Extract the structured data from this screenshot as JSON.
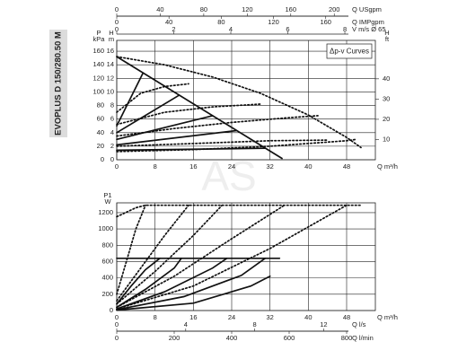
{
  "model": "EVOPLUS D 150/280.50 M",
  "watermark": "AS",
  "chart_data": [
    {
      "type": "line",
      "legend_box": "Δp-v Curves",
      "grid": true,
      "x_label": "Q m³/h",
      "xlim": [
        0,
        54
      ],
      "xticks": [
        0,
        8,
        16,
        24,
        32,
        40,
        48
      ],
      "y_label": "P",
      "y_unit": "kPa",
      "ylim": [
        0,
        176
      ],
      "yticks": [
        0,
        20,
        40,
        60,
        80,
        100,
        120,
        140,
        160
      ],
      "x_axes_extra": [
        {
          "label": "Q USgpm",
          "lim": [
            0,
            237.8
          ],
          "ticks": [
            0,
            40,
            80,
            120,
            160,
            200
          ]
        },
        {
          "label": "Q IMPgpm",
          "lim": [
            0,
            198
          ],
          "ticks": [
            0,
            40,
            80,
            120,
            160
          ]
        },
        {
          "label": "V m/s Ø 65",
          "lim": [
            0,
            9.07
          ],
          "ticks": [
            0,
            2,
            4,
            6,
            8
          ]
        }
      ],
      "y_axes_extra": [
        {
          "label": "H",
          "unit": "m",
          "side": "left",
          "lim": [
            0,
            17.6
          ],
          "ticks": [
            0,
            2,
            4,
            6,
            8,
            10,
            12,
            14,
            16
          ]
        },
        {
          "label": "H",
          "unit": "ft",
          "side": "right",
          "lim": [
            0,
            59
          ],
          "ticks": [
            10,
            20,
            30,
            40
          ]
        }
      ],
      "series": [
        {
          "style": "solid",
          "color": "#111111",
          "x": [
            0,
            34.5
          ],
          "values": [
            152,
            2
          ]
        },
        {
          "style": "solid",
          "color": "#111111",
          "x": [
            0,
            5.5
          ],
          "values": [
            50,
            128
          ]
        },
        {
          "style": "solid",
          "color": "#111111",
          "x": [
            0,
            13
          ],
          "values": [
            40,
            95
          ]
        },
        {
          "style": "solid",
          "color": "#111111",
          "x": [
            0,
            20
          ],
          "values": [
            30,
            65
          ]
        },
        {
          "style": "solid",
          "color": "#111111",
          "x": [
            0,
            25
          ],
          "values": [
            22,
            43
          ]
        },
        {
          "style": "solid",
          "color": "#111111",
          "x": [
            0,
            31
          ],
          "values": [
            14,
            17
          ]
        },
        {
          "style": "dotted",
          "color": "#111111",
          "x": [
            0,
            10,
            20,
            30,
            40,
            48,
            51
          ],
          "values": [
            152,
            140,
            122,
            98,
            66,
            33,
            18
          ]
        },
        {
          "style": "dotted",
          "color": "#111111",
          "x": [
            0,
            5,
            10,
            15
          ],
          "values": [
            70,
            98,
            108,
            112
          ]
        },
        {
          "style": "dotted",
          "color": "#111111",
          "x": [
            0,
            10,
            20,
            30
          ],
          "values": [
            52,
            70,
            78,
            82
          ]
        },
        {
          "style": "dotted",
          "color": "#111111",
          "x": [
            0,
            12,
            24,
            36,
            42
          ],
          "values": [
            35,
            46,
            55,
            62,
            65
          ]
        },
        {
          "style": "dotted",
          "color": "#111111",
          "x": [
            0,
            16,
            32,
            44
          ],
          "values": [
            20,
            24,
            28,
            29
          ]
        },
        {
          "style": "dotted",
          "color": "#111111",
          "x": [
            0,
            16,
            32,
            48,
            50
          ],
          "values": [
            12,
            15,
            20,
            28,
            30
          ]
        }
      ]
    },
    {
      "type": "line",
      "grid": true,
      "x_label": "Q m³/h",
      "xlim": [
        0,
        54
      ],
      "xticks": [
        0,
        8,
        16,
        24,
        32,
        40,
        48
      ],
      "y_label": "P1",
      "y_unit": "W",
      "ylim": [
        0,
        1320
      ],
      "yticks": [
        0,
        200,
        400,
        600,
        800,
        1000,
        1200
      ],
      "x_axes_extra": [
        {
          "label": "Q l/s",
          "lim": [
            0,
            15
          ],
          "ticks": [
            0,
            4,
            8,
            12
          ]
        },
        {
          "label": "Q l/min",
          "lim": [
            0,
            900
          ],
          "ticks": [
            0,
            200,
            400,
            600,
            800
          ]
        }
      ],
      "series": [
        {
          "style": "solid",
          "color": "#111111",
          "x": [
            0,
            34
          ],
          "values": [
            640,
            640
          ]
        },
        {
          "style": "solid",
          "color": "#111111",
          "x": [
            0,
            3,
            6,
            9
          ],
          "values": [
            80,
            300,
            500,
            640
          ]
        },
        {
          "style": "solid",
          "color": "#111111",
          "x": [
            0,
            6,
            12,
            13.5
          ],
          "values": [
            40,
            260,
            520,
            640
          ]
        },
        {
          "style": "solid",
          "color": "#111111",
          "x": [
            0,
            10,
            20,
            23
          ],
          "values": [
            20,
            230,
            520,
            640
          ]
        },
        {
          "style": "solid",
          "color": "#111111",
          "x": [
            0,
            14,
            26,
            31
          ],
          "values": [
            10,
            170,
            430,
            640
          ]
        },
        {
          "style": "solid",
          "color": "#111111",
          "x": [
            0,
            16,
            28,
            32
          ],
          "values": [
            5,
            90,
            300,
            420
          ]
        },
        {
          "style": "dotted",
          "color": "#111111",
          "x": [
            0,
            4,
            6,
            51
          ],
          "values": [
            1150,
            1260,
            1290,
            1290
          ]
        },
        {
          "style": "dotted",
          "color": "#111111",
          "x": [
            0,
            2,
            4,
            6
          ],
          "values": [
            200,
            600,
            1000,
            1290
          ]
        },
        {
          "style": "dotted",
          "color": "#111111",
          "x": [
            0,
            5,
            10,
            15
          ],
          "values": [
            120,
            520,
            920,
            1290
          ]
        },
        {
          "style": "dotted",
          "color": "#111111",
          "x": [
            0,
            8,
            16,
            22
          ],
          "values": [
            80,
            480,
            920,
            1290
          ]
        },
        {
          "style": "dotted",
          "color": "#111111",
          "x": [
            0,
            12,
            24,
            35
          ],
          "values": [
            40,
            420,
            880,
            1290
          ]
        },
        {
          "style": "dotted",
          "color": "#111111",
          "x": [
            0,
            16,
            32,
            48
          ],
          "values": [
            20,
            300,
            760,
            1290
          ]
        }
      ]
    }
  ]
}
